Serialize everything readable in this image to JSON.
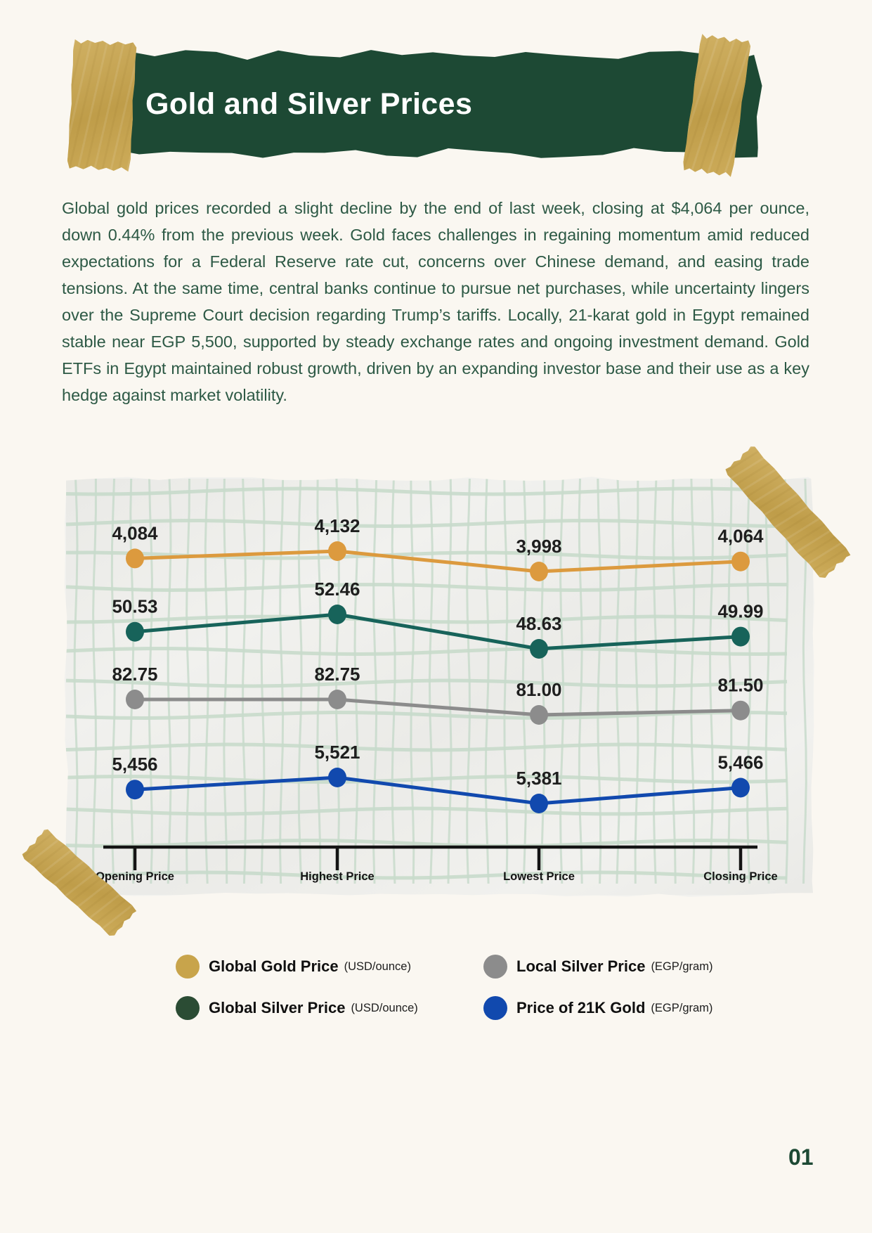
{
  "page": {
    "background": "#FAF7F1",
    "number": "01"
  },
  "header": {
    "title": "Gold and Silver Prices",
    "banner_color": "#1D4934",
    "title_color": "#FFFFFF",
    "tape_color": "#C9A54D"
  },
  "paragraph": {
    "text": "Global gold prices recorded a slight decline by the end of last week, closing at $4,064 per ounce, down 0.44% from the previous week. Gold faces challenges in regaining momentum amid reduced expectations for a Federal Reserve rate cut, concerns over Chinese demand, and easing trade tensions. At the same time, central banks continue to pursue net purchases, while uncertainty lingers over the Supreme Court decision regarding Trump’s tariffs. Locally, 21-karat gold in Egypt remained stable near EGP 5,500, supported by steady exchange rates and ongoing investment demand. Gold ETFs in Egypt maintained robust growth, driven by an expanding investor base and their use as a key hedge against market volatility."
  },
  "chart_data": {
    "type": "line",
    "title": "",
    "xlabel": "",
    "ylabel": "",
    "grid": true,
    "legend_position": "bottom",
    "categories": [
      "Opening Price",
      "Highest Price",
      "Lowest Price",
      "Closing Price"
    ],
    "series": [
      {
        "name": "Global Gold Price",
        "unit": "USD/ounce",
        "color": "#DC9A3E",
        "values": [
          4084,
          4132,
          3998,
          4064
        ],
        "labels": [
          "4,084",
          "4,132",
          "3,998",
          "4,064"
        ]
      },
      {
        "name": "Global Silver Price",
        "unit": "USD/ounce",
        "color": "#17635A",
        "values": [
          50.53,
          52.46,
          48.63,
          49.99
        ],
        "labels": [
          "50.53",
          "52.46",
          "48.63",
          "49.99"
        ]
      },
      {
        "name": "Local Silver Price",
        "unit": "EGP/gram",
        "color": "#8C8C8C",
        "values": [
          82.75,
          82.75,
          81.0,
          81.5
        ],
        "labels": [
          "82.75",
          "82.75",
          "81.00",
          "81.50"
        ]
      },
      {
        "name": "Price of 21K Gold",
        "unit": "EGP/gram",
        "color": "#1149AE",
        "values": [
          5456,
          5521,
          5381,
          5466
        ],
        "labels": [
          "5,456",
          "5,521",
          "5,381",
          "5,466"
        ]
      }
    ],
    "colors": {
      "paper": "#F1F1EE",
      "grid": "#C8DACB",
      "axis": "#141414",
      "label": "#1E1E1E"
    }
  },
  "legend": {
    "items": [
      {
        "label": "Global Gold Price",
        "unit": "(USD/ounce)",
        "swatch": "#C8A44B"
      },
      {
        "label": "Local Silver Price",
        "unit": "(EGP/gram)",
        "swatch": "#8C8C8C"
      },
      {
        "label": "Global Silver Price",
        "unit": "(USD/ounce)",
        "swatch": "#2B4C34"
      },
      {
        "label": "Price of 21K Gold",
        "unit": "(EGP/gram)",
        "swatch": "#1149AE"
      }
    ]
  }
}
